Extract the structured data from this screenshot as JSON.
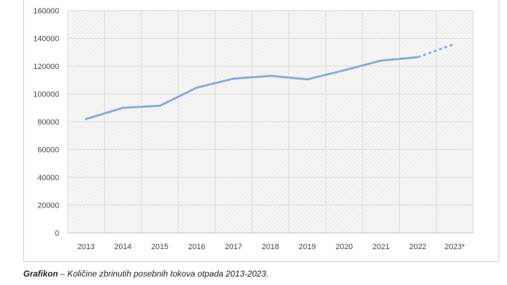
{
  "chart_data": {
    "type": "line",
    "title": "",
    "xlabel": "",
    "ylabel": "",
    "categories": [
      "2013",
      "2014",
      "2015",
      "2016",
      "2017",
      "2018",
      "2019",
      "2020",
      "2021",
      "2022",
      "2023*"
    ],
    "series": [
      {
        "values": [
          82000,
          90000,
          91500,
          104500,
          111000,
          113000,
          110500,
          117000,
          124000,
          126500,
          136000
        ],
        "color": "#8ea9d8",
        "dashed_from_index": 9
      }
    ],
    "ylim": [
      0,
      160000
    ],
    "yticks": [
      "0",
      "20000",
      "40000",
      "60000",
      "80000",
      "100000",
      "120000",
      "140000",
      "160000"
    ],
    "ytick_values": [
      0,
      20000,
      40000,
      60000,
      80000,
      100000,
      120000,
      140000,
      160000
    ],
    "grid": true,
    "legend": "none",
    "plot_background": "hatched-light-gray"
  },
  "caption": {
    "bold": "Grafikon",
    "text": " – Količine zbrinutih posebnih tokova otpada 2013-2023."
  }
}
